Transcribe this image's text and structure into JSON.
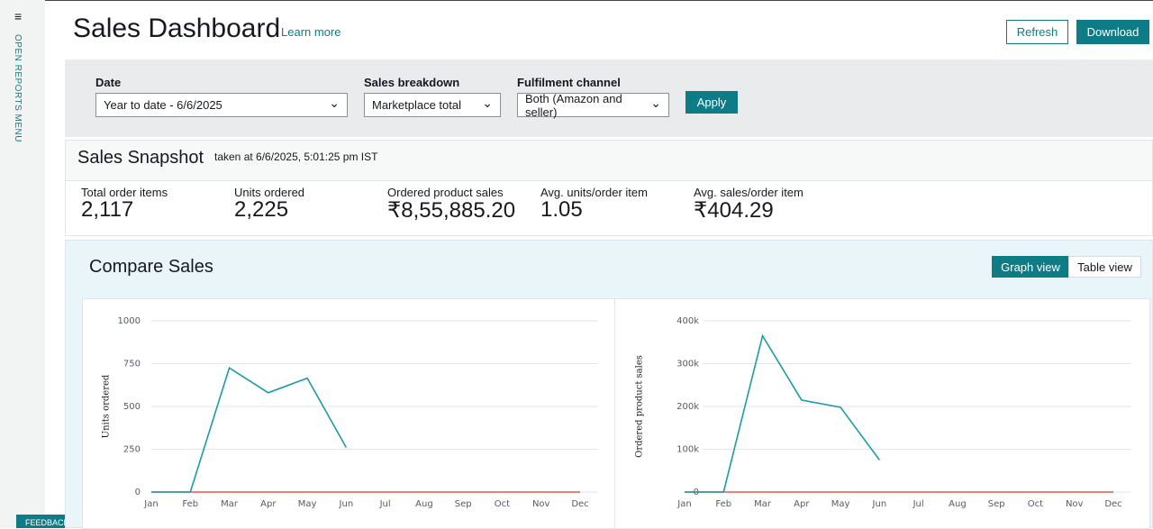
{
  "header": {
    "title": "Sales Dashboard",
    "learn_more": "Learn more",
    "refresh": "Refresh",
    "download": "Download"
  },
  "sidebar": {
    "menu": "OPEN REPORTS MENU",
    "feedback": "FEEDBACK"
  },
  "filters": {
    "date_label": "Date",
    "date_value": "Year to date - 6/6/2025",
    "breakdown_label": "Sales breakdown",
    "breakdown_value": "Marketplace total",
    "channel_label": "Fulfilment channel",
    "channel_value": "Both (Amazon and seller)",
    "apply": "Apply"
  },
  "snapshot": {
    "title": "Sales Snapshot",
    "taken": "taken at 6/6/2025, 5:01:25 pm IST",
    "metrics": [
      {
        "label": "Total order items",
        "value": "2,117"
      },
      {
        "label": "Units ordered",
        "value": "2,225"
      },
      {
        "label": "Ordered product sales",
        "value": "₹8,55,885.20"
      },
      {
        "label": "Avg. units/order item",
        "value": "1.05"
      },
      {
        "label": "Avg. sales/order item",
        "value": "₹404.29"
      }
    ]
  },
  "compare": {
    "title": "Compare Sales",
    "graph_view": "Graph view",
    "table_view": "Table view"
  },
  "chart_data": [
    {
      "type": "line",
      "ylabel": "Units ordered",
      "categories": [
        "Jan",
        "Feb",
        "Mar",
        "Apr",
        "May",
        "Jun",
        "Jul",
        "Aug",
        "Sep",
        "Oct",
        "Nov",
        "Dec"
      ],
      "series": [
        {
          "color": "#e3584a",
          "values": [
            0,
            0,
            0,
            0,
            0,
            0,
            0,
            0,
            0,
            0,
            0,
            0
          ]
        },
        {
          "color": "#1a9ba6",
          "values": [
            0,
            0,
            725,
            580,
            665,
            260,
            null,
            null,
            null,
            null,
            null,
            null
          ]
        }
      ],
      "ylim": [
        0,
        1000
      ],
      "yticks": [
        0,
        250,
        500,
        750,
        1000
      ],
      "grid": true
    },
    {
      "type": "line",
      "ylabel": "Ordered product sales",
      "categories": [
        "Jan",
        "Feb",
        "Mar",
        "Apr",
        "May",
        "Jun",
        "Jul",
        "Aug",
        "Sep",
        "Oct",
        "Nov",
        "Dec"
      ],
      "series": [
        {
          "color": "#e3584a",
          "values": [
            0,
            0,
            0,
            0,
            0,
            0,
            0,
            0,
            0,
            0,
            0,
            0
          ]
        },
        {
          "color": "#1a9ba6",
          "values": [
            0,
            0,
            365000,
            215000,
            198000,
            75000,
            null,
            null,
            null,
            null,
            null,
            null
          ]
        }
      ],
      "ylim": [
        0,
        400000
      ],
      "yticks": [
        0,
        {
          "value": 100000,
          "label": "100k"
        },
        {
          "value": 200000,
          "label": "200k"
        },
        {
          "value": 300000,
          "label": "300k"
        },
        {
          "value": 400000,
          "label": "400k"
        }
      ],
      "grid": true
    }
  ]
}
